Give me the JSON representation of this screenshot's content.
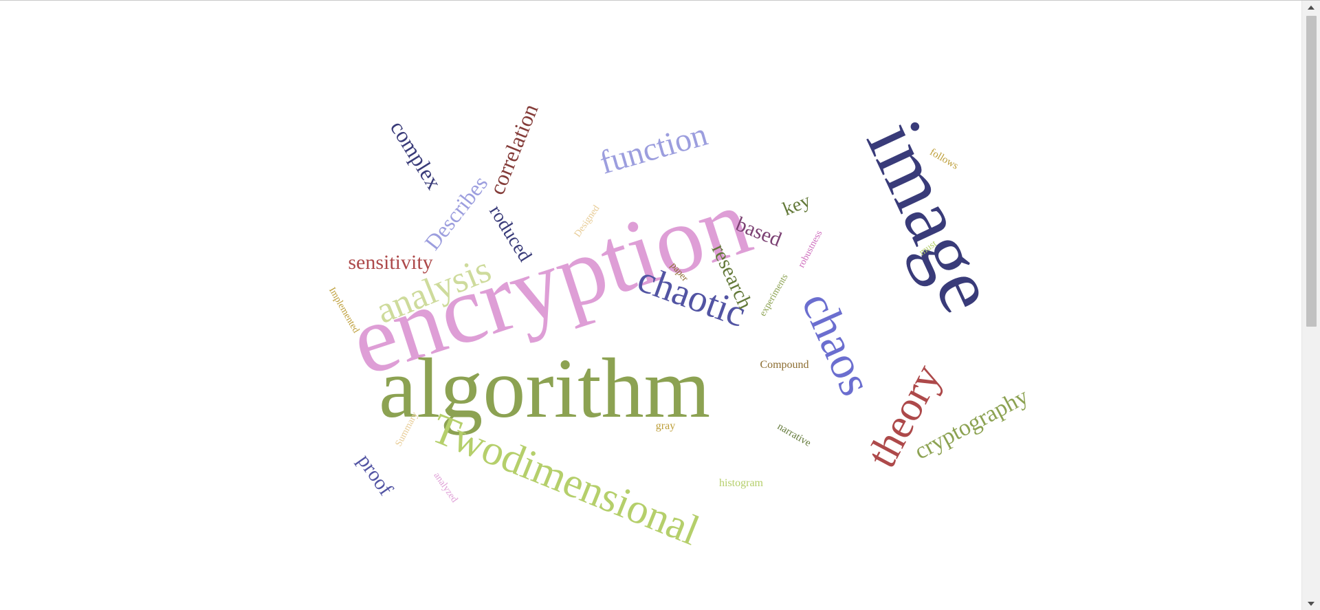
{
  "colors": {
    "background": "#ffffff",
    "navy": "#3a4280",
    "pink": "#de9ed6",
    "olive": "#8ca252",
    "lime": "#b5cf6b",
    "periwinkle": "#6b6ecf",
    "lavender": "#9c9ede",
    "red": "#ad494a",
    "darkred": "#843c39",
    "darkgreen": "#637939",
    "purple": "#7b4173",
    "tan": "#bd9e39",
    "rose": "#ce6dbd"
  },
  "words": [
    {
      "text": "encryption",
      "color": "#de9ed6"
    },
    {
      "text": "algorithm",
      "color": "#8ca252"
    },
    {
      "text": "image",
      "color": "#393b79"
    },
    {
      "text": "Twodimensional",
      "color": "#b5cf6b"
    },
    {
      "text": "chaos",
      "color": "#6b6ecf"
    },
    {
      "text": "theory",
      "color": "#ad494a"
    },
    {
      "text": "chaotic",
      "color": "#5254a3"
    },
    {
      "text": "analysis",
      "color": "#cedb9c"
    },
    {
      "text": "function",
      "color": "#9c9ede"
    },
    {
      "text": "cryptography",
      "color": "#8ca252"
    },
    {
      "text": "sensitivity",
      "color": "#ad494a"
    },
    {
      "text": "correlation",
      "color": "#843c39"
    },
    {
      "text": "complex",
      "color": "#393b79"
    },
    {
      "text": "Describes",
      "color": "#9c9ede"
    },
    {
      "text": "roduced",
      "color": "#393b79"
    },
    {
      "text": "research",
      "color": "#637939"
    },
    {
      "text": "based",
      "color": "#7b4173"
    },
    {
      "text": "key",
      "color": "#637939"
    },
    {
      "text": "proof",
      "color": "#5254a3"
    },
    {
      "text": "Compound",
      "color": "#8c6d31"
    },
    {
      "text": "histogram",
      "color": "#b5cf6b"
    },
    {
      "text": "narrative",
      "color": "#637939"
    },
    {
      "text": "gray",
      "color": "#bd9e39"
    },
    {
      "text": "follows",
      "color": "#bd9e39"
    },
    {
      "text": "must",
      "color": "#b5cf6b"
    },
    {
      "text": "robustness",
      "color": "#ce6dbd"
    },
    {
      "text": "experiments",
      "color": "#8ca252"
    },
    {
      "text": "paper",
      "color": "#8c6d31"
    },
    {
      "text": "Designed",
      "color": "#e7cb94"
    },
    {
      "text": "Implemented",
      "color": "#bd9e39"
    },
    {
      "text": "Summary",
      "color": "#e7cb94"
    },
    {
      "text": "analyzed",
      "color": "#de9ed6"
    }
  ]
}
